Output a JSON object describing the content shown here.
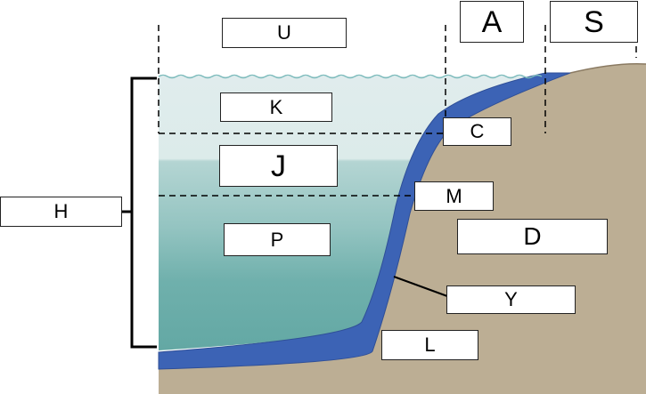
{
  "diagram": {
    "labels": {
      "U": "U",
      "A": "A",
      "S": "S",
      "K": "K",
      "C": "C",
      "J": "J",
      "M": "M",
      "H": "H",
      "P": "P",
      "D": "D",
      "Y": "Y",
      "L": "L"
    },
    "colors": {
      "seabed": "#bcae94",
      "seabed_edge": "#8a7a62",
      "sediment_layer": "#3c63b5",
      "water_surface": "#e0eced",
      "water_mid": "#a4cbc9",
      "water_deep": "#63a8a4",
      "surface_wave": "#7fbcbd"
    }
  }
}
